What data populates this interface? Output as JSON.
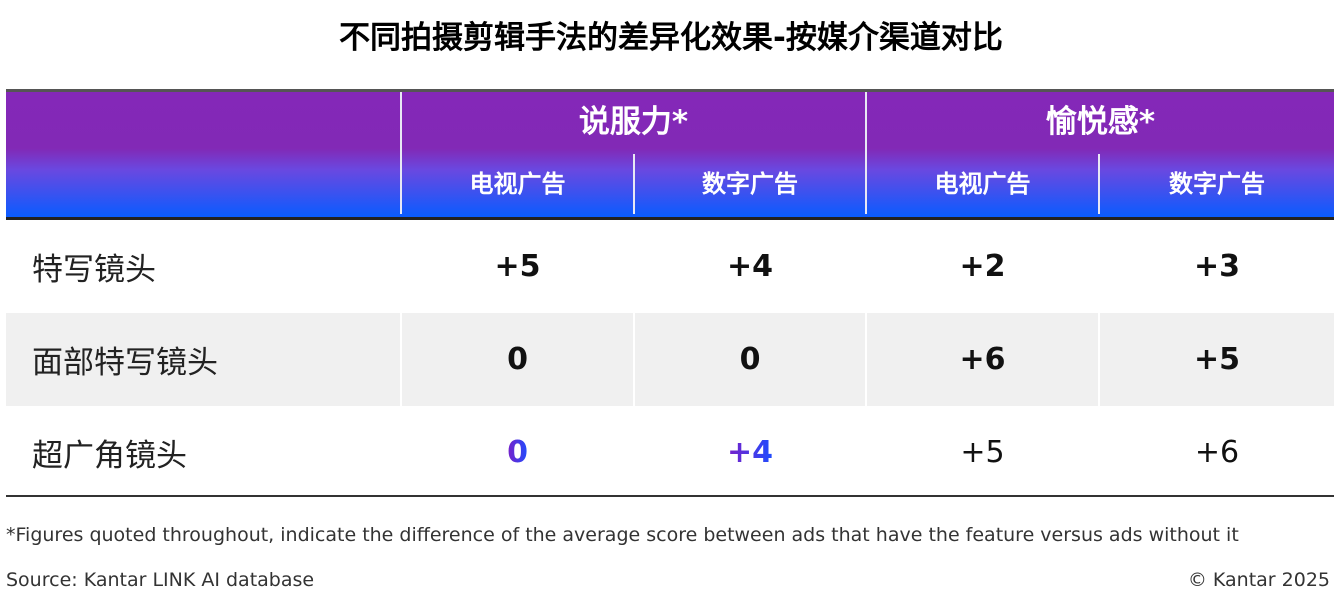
{
  "title": "不同拍摄剪辑手法的差异化效果-按媒介渠道对比",
  "chart_data": {
    "type": "table",
    "title": "不同拍摄剪辑手法的差异化效果-按媒介渠道对比",
    "column_groups": [
      "说服力*",
      "愉悦感*"
    ],
    "columns": [
      "电视广告",
      "数字广告",
      "电视广告",
      "数字广告"
    ],
    "rows": [
      {
        "label": "特写镜头",
        "values": [
          "+5",
          "+4",
          "+2",
          "+3"
        ]
      },
      {
        "label": "面部特写镜头",
        "values": [
          "0",
          "0",
          "+6",
          "+5"
        ]
      },
      {
        "label": "超广角镜头",
        "values": [
          "0",
          "+4",
          "+5",
          "+6"
        ]
      }
    ]
  },
  "colors": {
    "header_top": "#8428b8",
    "header_bottom": "#0a5cff",
    "highlight_text_start": "#7a1fc8",
    "highlight_text_end": "#1e4dff",
    "alt_row": "#f0f0f0"
  },
  "footnote": "*Figures quoted throughout, indicate the difference of the average score between ads that have the feature versus ads without it",
  "source": "Source: Kantar LINK AI database",
  "copyright": "© Kantar 2025"
}
